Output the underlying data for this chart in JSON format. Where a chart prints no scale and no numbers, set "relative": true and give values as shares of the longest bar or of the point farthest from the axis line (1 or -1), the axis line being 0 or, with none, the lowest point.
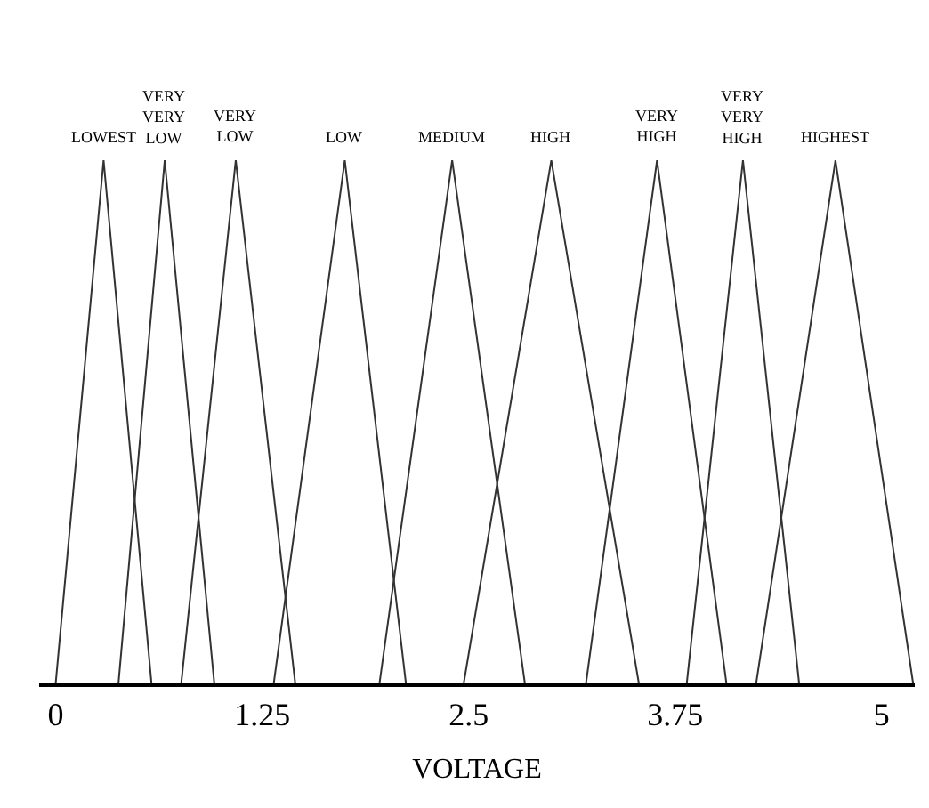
{
  "chart_data": {
    "type": "line",
    "relative": true,
    "xlabel": "VOLTAGE",
    "xlim": [
      -0.1,
      5.2
    ],
    "xticks": [
      0,
      1.25,
      2.5,
      3.75,
      5
    ],
    "series": [
      {
        "name": "LOWEST",
        "color": "#333333",
        "x": [
          0,
          0.29,
          0.58
        ],
        "values": [
          0,
          1,
          0
        ]
      },
      {
        "name": "VERY VERY LOW",
        "color": "#333333",
        "x": [
          0.38,
          0.66,
          0.96
        ],
        "values": [
          0,
          1,
          0
        ]
      },
      {
        "name": "VERY LOW",
        "color": "#333333",
        "x": [
          0.76,
          1.09,
          1.45
        ],
        "values": [
          0,
          1,
          0
        ]
      },
      {
        "name": "LOW",
        "color": "#333333",
        "x": [
          1.32,
          1.75,
          2.12
        ],
        "values": [
          0,
          1,
          0
        ]
      },
      {
        "name": "MEDIUM",
        "color": "#333333",
        "x": [
          1.96,
          2.4,
          2.84
        ],
        "values": [
          0,
          1,
          0
        ]
      },
      {
        "name": "HIGH",
        "color": "#333333",
        "x": [
          2.47,
          3.0,
          3.53
        ],
        "values": [
          0,
          1,
          0
        ]
      },
      {
        "name": "VERY HIGH",
        "color": "#333333",
        "x": [
          3.21,
          3.64,
          4.06
        ],
        "values": [
          0,
          1,
          0
        ]
      },
      {
        "name": "VERY VERY HIGH",
        "color": "#333333",
        "x": [
          3.82,
          4.16,
          4.5
        ],
        "values": [
          0,
          1,
          0
        ]
      },
      {
        "name": "HIGHEST",
        "color": "#333333",
        "x": [
          4.24,
          4.72,
          5.19
        ],
        "values": [
          0,
          1,
          0
        ]
      }
    ]
  }
}
